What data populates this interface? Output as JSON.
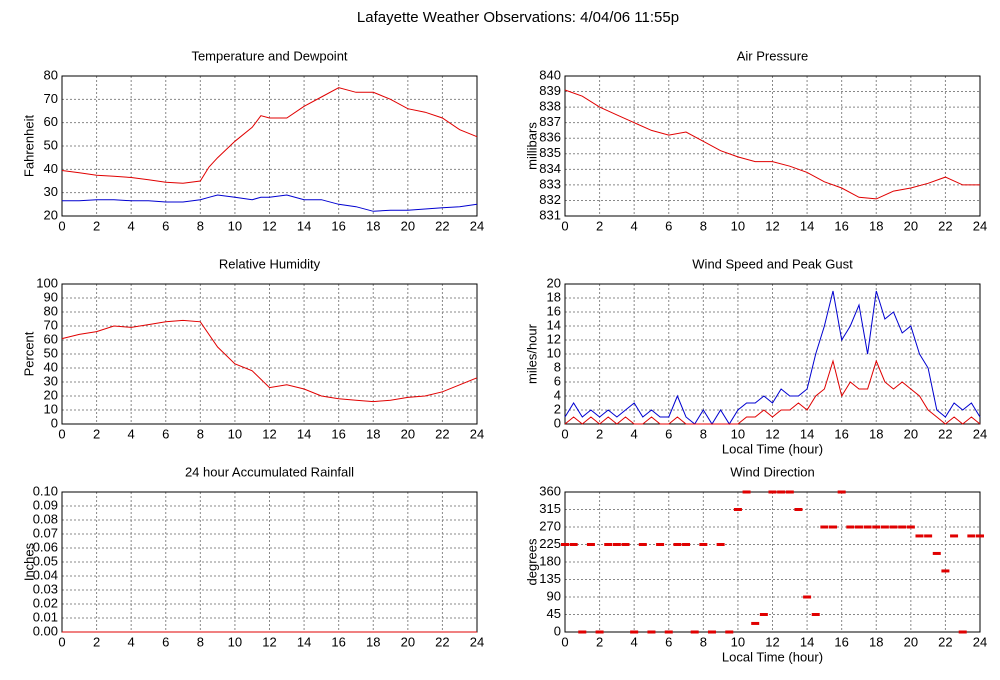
{
  "title": "Lafayette Weather Observations: 4/04/06 11:55p",
  "chart_data": [
    {
      "type": "line",
      "title": "Temperature and Dewpoint",
      "y_label": "Fahrenheit",
      "grid": true,
      "x": [
        0,
        1,
        2,
        3,
        4,
        5,
        6,
        7,
        8,
        8.5,
        9,
        10,
        11,
        11.5,
        12,
        13,
        14,
        15,
        16,
        17,
        18,
        19,
        20,
        21,
        22,
        23,
        24
      ],
      "series": [
        {
          "color": "#e00000",
          "values": [
            39.5,
            38.5,
            37.5,
            37,
            36.5,
            35.5,
            34.5,
            34,
            35,
            41,
            45,
            52,
            58,
            63,
            62,
            62,
            67,
            71,
            75,
            73,
            73,
            70,
            66,
            64.5,
            62,
            57,
            54
          ]
        },
        {
          "color": "#0000d0",
          "values": [
            26.5,
            26.5,
            27,
            27,
            26.5,
            26.5,
            26,
            26,
            27,
            28,
            29,
            28,
            27,
            28,
            28,
            29,
            27,
            27,
            25,
            24,
            22,
            22.5,
            22.5,
            23,
            23.5,
            24,
            25
          ]
        }
      ],
      "xlim": [
        0,
        24
      ],
      "xticks": [
        0,
        2,
        4,
        6,
        8,
        10,
        12,
        14,
        16,
        18,
        20,
        22,
        24
      ],
      "ylim": [
        20,
        80
      ],
      "yticks": [
        20,
        30,
        40,
        50,
        60,
        70,
        80
      ]
    },
    {
      "type": "line",
      "title": "Air Pressure",
      "y_label": "millibars",
      "grid": true,
      "x": [
        0,
        1,
        2,
        3,
        4,
        5,
        6,
        7,
        8,
        9,
        10,
        11,
        12,
        13,
        14,
        15,
        16,
        17,
        18,
        19,
        20,
        21,
        22,
        23,
        24
      ],
      "series": [
        {
          "color": "#e00000",
          "values": [
            839.1,
            838.7,
            838,
            837.5,
            837,
            836.5,
            836.2,
            836.4,
            835.8,
            835.2,
            834.8,
            834.5,
            834.5,
            834.2,
            833.8,
            833.2,
            832.8,
            832.2,
            832.1,
            832.6,
            832.8,
            833.1,
            833.5,
            833,
            833
          ]
        }
      ],
      "xlim": [
        0,
        24
      ],
      "xticks": [
        0,
        2,
        4,
        6,
        8,
        10,
        12,
        14,
        16,
        18,
        20,
        22,
        24
      ],
      "ylim": [
        831,
        840
      ],
      "yticks": [
        831,
        832,
        833,
        834,
        835,
        836,
        837,
        838,
        839,
        840
      ]
    },
    {
      "type": "line",
      "title": "Relative Humidity",
      "y_label": "Percent",
      "grid": true,
      "x": [
        0,
        1,
        2,
        3,
        4,
        5,
        6,
        7,
        8,
        9,
        10,
        11,
        12,
        13,
        14,
        15,
        16,
        17,
        18,
        19,
        20,
        21,
        22,
        23,
        24
      ],
      "series": [
        {
          "color": "#e00000",
          "values": [
            61,
            64,
            66,
            70,
            69,
            71,
            73,
            74,
            73,
            55,
            43,
            38,
            26,
            28,
            25,
            20,
            18,
            17,
            16,
            17,
            19,
            20,
            23,
            28,
            33
          ]
        }
      ],
      "xlim": [
        0,
        24
      ],
      "xticks": [
        0,
        2,
        4,
        6,
        8,
        10,
        12,
        14,
        16,
        18,
        20,
        22,
        24
      ],
      "ylim": [
        0,
        100
      ],
      "yticks": [
        0,
        10,
        20,
        30,
        40,
        50,
        60,
        70,
        80,
        90,
        100
      ]
    },
    {
      "type": "line",
      "title": "Wind Speed and Peak Gust",
      "y_label": "miles/hour",
      "x_label": "Local Time (hour)",
      "grid": true,
      "x": [
        0,
        0.5,
        1,
        1.5,
        2,
        2.5,
        3,
        3.5,
        4,
        4.5,
        5,
        5.5,
        6,
        6.5,
        7,
        7.5,
        8,
        8.5,
        9,
        9.5,
        10,
        10.5,
        11,
        11.5,
        12,
        12.5,
        13,
        13.5,
        14,
        14.5,
        15,
        15.5,
        16,
        16.5,
        17,
        17.5,
        18,
        18.5,
        19,
        19.5,
        20,
        20.5,
        21,
        21.5,
        22,
        22.5,
        23,
        23.5,
        24
      ],
      "series": [
        {
          "color": "#0000d0",
          "values": [
            1,
            3,
            1,
            2,
            1,
            2,
            1,
            2,
            3,
            1,
            2,
            1,
            1,
            4,
            1,
            0,
            2,
            0,
            2,
            0,
            2,
            3,
            3,
            4,
            3,
            5,
            4,
            4,
            5,
            10,
            14,
            19,
            12,
            14,
            17,
            10,
            19,
            15,
            16,
            13,
            14,
            10,
            8,
            2,
            1,
            3,
            2,
            3,
            1
          ]
        },
        {
          "color": "#e00000",
          "values": [
            0,
            1,
            0,
            1,
            0,
            1,
            0,
            1,
            0,
            0,
            1,
            0,
            0,
            1,
            0,
            0,
            0,
            0,
            0,
            0,
            0,
            1,
            1,
            2,
            1,
            2,
            2,
            3,
            2,
            4,
            5,
            9,
            4,
            6,
            5,
            5,
            9,
            6,
            5,
            6,
            5,
            4,
            2,
            1,
            0,
            1,
            0,
            1,
            0
          ]
        }
      ],
      "xlim": [
        0,
        24
      ],
      "xticks": [
        0,
        2,
        4,
        6,
        8,
        10,
        12,
        14,
        16,
        18,
        20,
        22,
        24
      ],
      "ylim": [
        0,
        20
      ],
      "yticks": [
        0,
        2,
        4,
        6,
        8,
        10,
        12,
        14,
        16,
        18,
        20
      ]
    },
    {
      "type": "line",
      "title": "24 hour Accumulated Rainfall",
      "y_label": "Inches",
      "grid": true,
      "x": [
        0,
        24
      ],
      "series": [
        {
          "color": "#e00000",
          "values": [
            0,
            0
          ]
        }
      ],
      "xlim": [
        0,
        24
      ],
      "xticks": [
        0,
        2,
        4,
        6,
        8,
        10,
        12,
        14,
        16,
        18,
        20,
        22,
        24
      ],
      "ylim": [
        0,
        0.1
      ],
      "yticks": [
        {
          "value": 0,
          "label": "0.00"
        },
        {
          "value": 0.01,
          "label": "0.01"
        },
        {
          "value": 0.02,
          "label": "0.02"
        },
        {
          "value": 0.03,
          "label": "0.03"
        },
        {
          "value": 0.04,
          "label": "0.04"
        },
        {
          "value": 0.05,
          "label": "0.05"
        },
        {
          "value": 0.06,
          "label": "0.06"
        },
        {
          "value": 0.07,
          "label": "0.07"
        },
        {
          "value": 0.08,
          "label": "0.08"
        },
        {
          "value": 0.09,
          "label": "0.09"
        },
        {
          "value": 0.1,
          "label": "0.10"
        }
      ]
    },
    {
      "type": "scatter",
      "title": "Wind Direction",
      "y_label": "degrees",
      "x_label": "Local Time (hour)",
      "grid": true,
      "x": [
        0,
        0.5,
        1,
        1.5,
        2,
        2.5,
        3,
        3.5,
        4,
        4.5,
        5,
        5.5,
        6,
        6.5,
        7,
        7.5,
        8,
        8.5,
        9,
        9.5,
        10,
        10.5,
        11,
        11.5,
        12,
        12.5,
        13,
        13.5,
        14,
        14.5,
        15,
        15.5,
        16,
        16.5,
        17,
        17.5,
        18,
        18.5,
        19,
        19.5,
        20,
        20.5,
        21,
        21.5,
        22,
        22.5,
        23,
        23.5,
        24
      ],
      "series": [
        {
          "color": "#e00000",
          "values": [
            225,
            225,
            0,
            225,
            0,
            225,
            225,
            225,
            0,
            225,
            0,
            225,
            0,
            225,
            225,
            0,
            225,
            0,
            225,
            0,
            315,
            360,
            22,
            45,
            360,
            360,
            360,
            315,
            90,
            45,
            270,
            270,
            360,
            270,
            270,
            270,
            270,
            270,
            270,
            270,
            270,
            247,
            247,
            202,
            157,
            247,
            0,
            247,
            247
          ]
        }
      ],
      "xlim": [
        0,
        24
      ],
      "xticks": [
        0,
        2,
        4,
        6,
        8,
        10,
        12,
        14,
        16,
        18,
        20,
        22,
        24
      ],
      "ylim": [
        0,
        360
      ],
      "yticks": [
        0,
        45,
        90,
        135,
        180,
        225,
        270,
        315,
        360
      ]
    }
  ]
}
